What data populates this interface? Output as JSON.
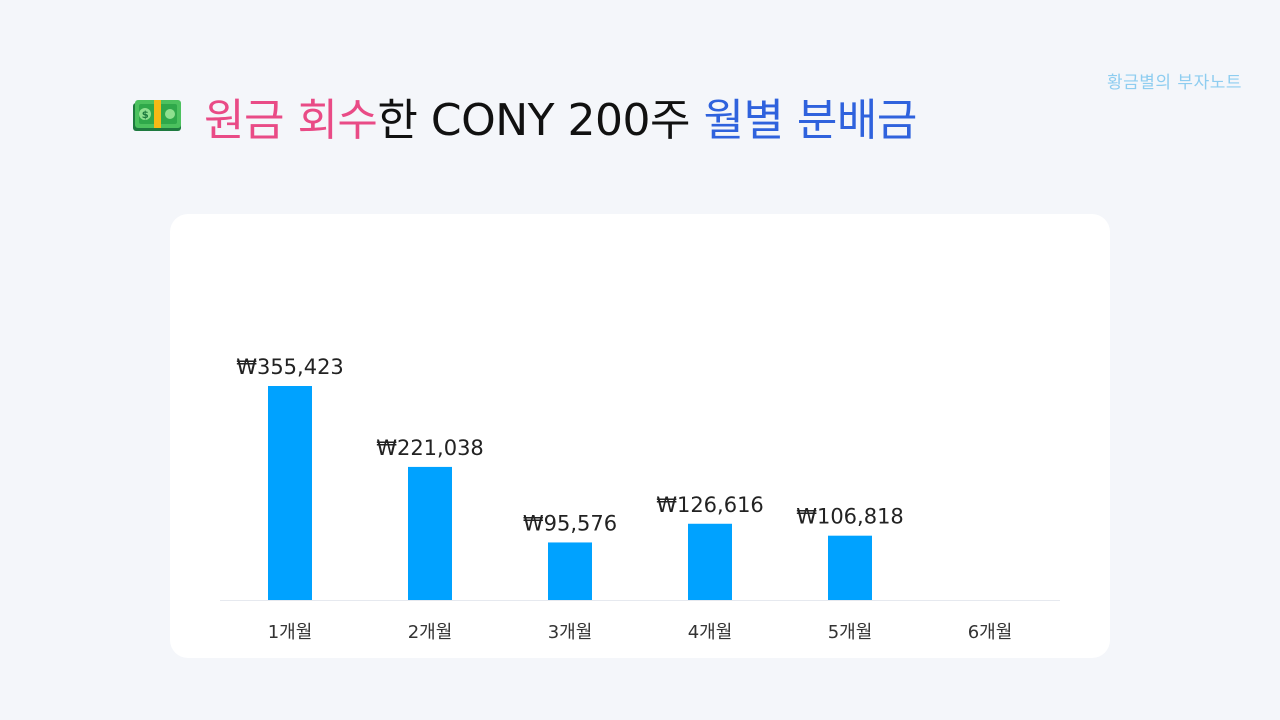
{
  "watermark": "황금별의 부자노트",
  "title": {
    "part1": "원금 회수",
    "part2": "한 CONY 200주 ",
    "part3": "월별 분배금"
  },
  "colors": {
    "bar": "#00a2ff",
    "title_pink": "#e94b86",
    "title_blue": "#2f62dd",
    "watermark": "#8ecdf0"
  },
  "icon": "money-bill-icon",
  "chart_data": {
    "type": "bar",
    "categories": [
      "1개월",
      "2개월",
      "3개월",
      "4개월",
      "5개월",
      "6개월"
    ],
    "values": [
      355423,
      221038,
      95576,
      126616,
      106818,
      null
    ],
    "value_labels": [
      "₩355,423",
      "₩221,038",
      "₩95,576",
      "₩126,616",
      "₩106,818",
      ""
    ],
    "title": "",
    "xlabel": "",
    "ylabel": "",
    "ylim": [
      0,
      360000
    ],
    "grid": false,
    "legend": "none"
  }
}
